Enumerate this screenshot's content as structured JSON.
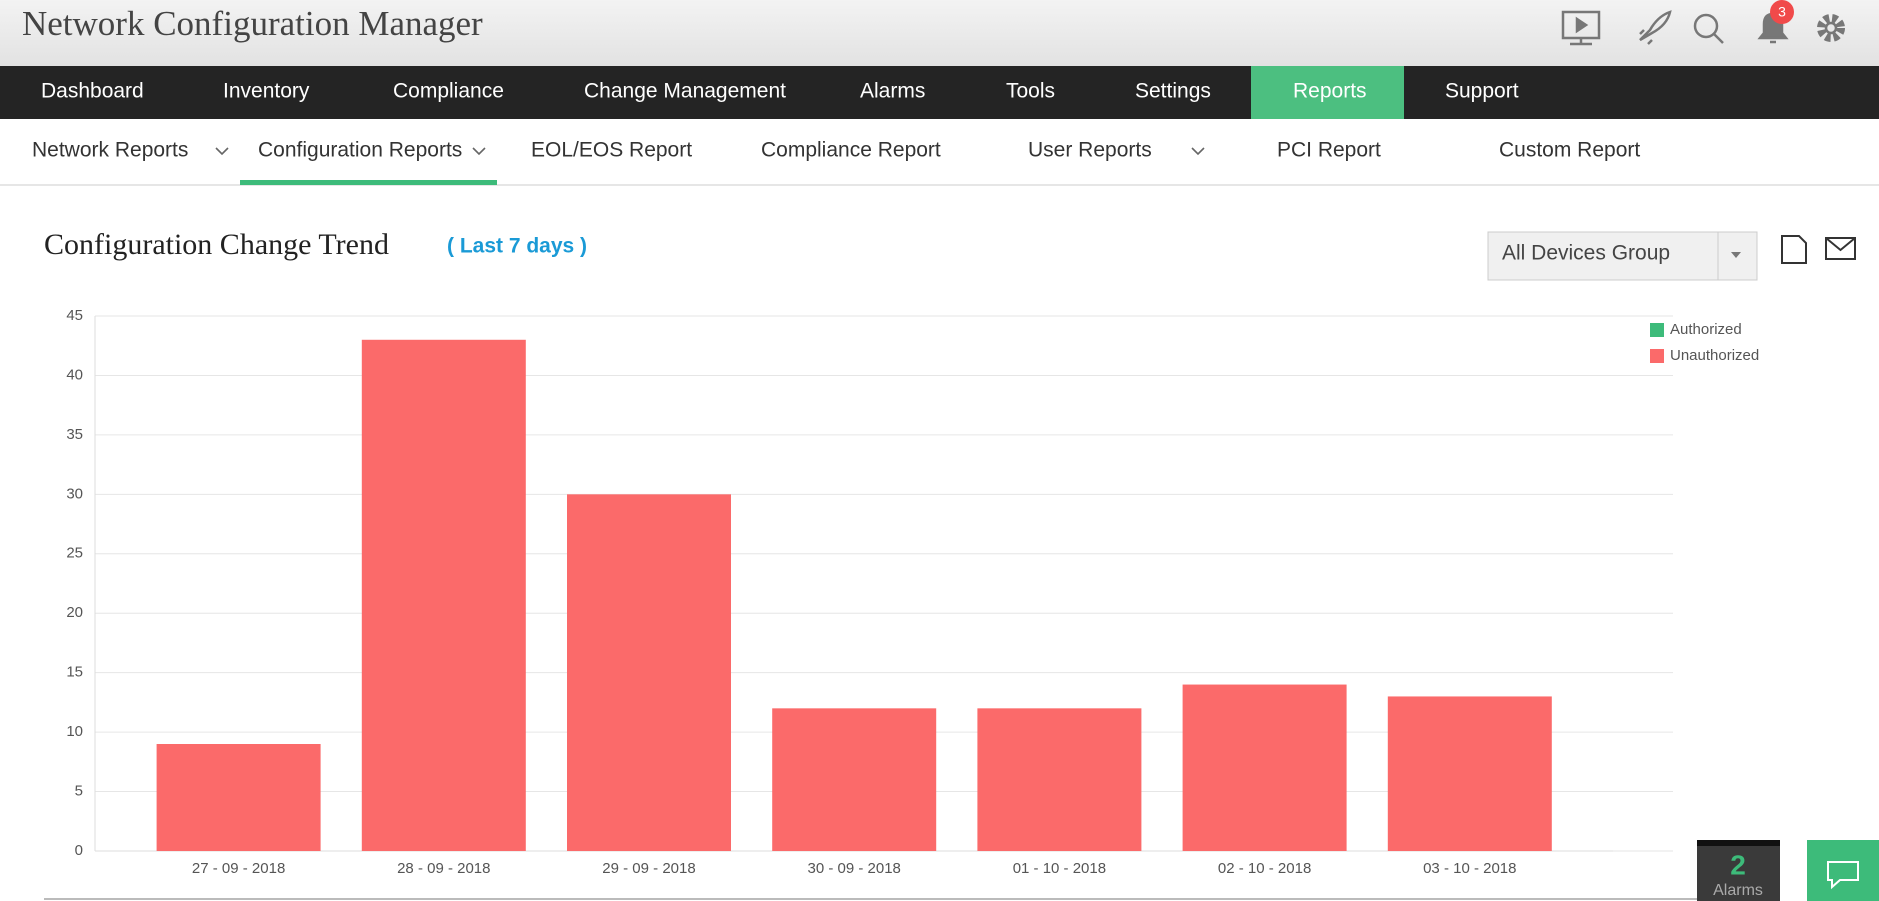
{
  "header": {
    "title": "Network Configuration Manager",
    "notification_count": "3"
  },
  "nav": [
    "Dashboard",
    "Inventory",
    "Compliance",
    "Change Management",
    "Alarms",
    "Tools",
    "Settings",
    "Reports",
    "Support"
  ],
  "subnav": [
    "Network Reports",
    "Configuration Reports",
    "EOL/EOS Report",
    "Compliance Report",
    "User Reports",
    "PCI Report",
    "Custom Report"
  ],
  "device_group": "All Devices Group",
  "chart_data": {
    "type": "bar",
    "stacked": true,
    "title": "Configuration Change Trend",
    "subtitle": "( Last 7 days )",
    "categories": [
      "27 - 09 - 2018",
      "28 - 09 - 2018",
      "29 - 09 - 2018",
      "30 - 09 - 2018",
      "01 - 10 - 2018",
      "02 - 10 - 2018",
      "03 - 10 - 2018"
    ],
    "series": [
      {
        "name": "Authorized",
        "color": "#3dbb7a",
        "values": [
          0,
          0,
          0,
          0,
          0,
          0,
          0
        ]
      },
      {
        "name": "Unauthorized",
        "color": "#fb6a6a",
        "values": [
          9,
          43,
          30,
          12,
          12,
          14,
          13
        ]
      }
    ],
    "ylim": [
      0,
      45
    ],
    "yticks": [
      0,
      5,
      10,
      15,
      20,
      25,
      30,
      35,
      40,
      45
    ],
    "grid": true
  },
  "alarms": {
    "count": "2",
    "label": "Alarms"
  }
}
